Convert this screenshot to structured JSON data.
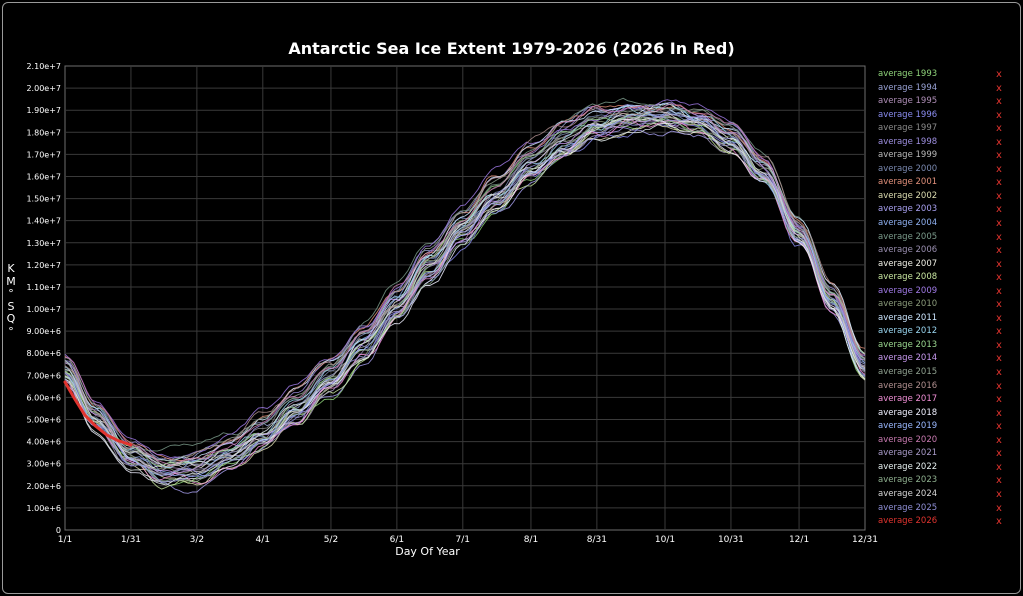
{
  "chart_data": {
    "type": "line",
    "title": "Antarctic Sea Ice Extent 1979-2026  (2026 In Red)",
    "xlabel": "Day Of Year",
    "ylabel_chars": [
      "K",
      "M",
      "°",
      "S",
      "Q",
      "°"
    ],
    "ylim": [
      0,
      21000000
    ],
    "xlim": [
      1,
      365
    ],
    "grid": true,
    "legend_position": "right",
    "y_ticks": [
      {
        "value": 0,
        "label": "0"
      },
      {
        "value": 1000000,
        "label": "1.00e+6"
      },
      {
        "value": 2000000,
        "label": "2.00e+6"
      },
      {
        "value": 3000000,
        "label": "3.00e+6"
      },
      {
        "value": 4000000,
        "label": "4.00e+6"
      },
      {
        "value": 5000000,
        "label": "5.00e+6"
      },
      {
        "value": 6000000,
        "label": "6.00e+6"
      },
      {
        "value": 7000000,
        "label": "7.00e+6"
      },
      {
        "value": 8000000,
        "label": "8.00e+6"
      },
      {
        "value": 9000000,
        "label": "9.00e+6"
      },
      {
        "value": 10000000,
        "label": "1.00e+7"
      },
      {
        "value": 11000000,
        "label": "1.10e+7"
      },
      {
        "value": 12000000,
        "label": "1.20e+7"
      },
      {
        "value": 13000000,
        "label": "1.30e+7"
      },
      {
        "value": 14000000,
        "label": "1.40e+7"
      },
      {
        "value": 15000000,
        "label": "1.50e+7"
      },
      {
        "value": 16000000,
        "label": "1.60e+7"
      },
      {
        "value": 17000000,
        "label": "1.70e+7"
      },
      {
        "value": 18000000,
        "label": "1.80e+7"
      },
      {
        "value": 19000000,
        "label": "1.90e+7"
      },
      {
        "value": 20000000,
        "label": "2.00e+7"
      },
      {
        "value": 21000000,
        "label": "2.10e+7"
      }
    ],
    "x_ticks": [
      {
        "day": 1,
        "label": "1/1"
      },
      {
        "day": 31,
        "label": "1/31"
      },
      {
        "day": 61,
        "label": "3/2"
      },
      {
        "day": 91,
        "label": "4/1"
      },
      {
        "day": 122,
        "label": "5/2"
      },
      {
        "day": 152,
        "label": "6/1"
      },
      {
        "day": 182,
        "label": "7/1"
      },
      {
        "day": 213,
        "label": "8/1"
      },
      {
        "day": 243,
        "label": "8/31"
      },
      {
        "day": 274,
        "label": "10/1"
      },
      {
        "day": 304,
        "label": "10/31"
      },
      {
        "day": 335,
        "label": "12/1"
      },
      {
        "day": 365,
        "label": "12/31"
      }
    ],
    "average_climatology": {
      "x": [
        1,
        15,
        31,
        46,
        61,
        76,
        91,
        106,
        122,
        137,
        152,
        167,
        182,
        197,
        213,
        228,
        243,
        258,
        274,
        289,
        304,
        319,
        335,
        350,
        365
      ],
      "y": [
        7300000,
        5200000,
        3600000,
        2900000,
        2850000,
        3400000,
        4300000,
        5600000,
        7100000,
        8600000,
        10300000,
        12100000,
        13800000,
        15300000,
        16600000,
        17600000,
        18400000,
        18800000,
        18900000,
        18600000,
        17800000,
        16300000,
        13500000,
        10500000,
        7500000
      ]
    },
    "series": [
      {
        "name": "average 1993",
        "color": "#8fd37a"
      },
      {
        "name": "average 1994",
        "color": "#9aa3d6"
      },
      {
        "name": "average 1995",
        "color": "#b08fb8"
      },
      {
        "name": "average 1996",
        "color": "#8a8cf0"
      },
      {
        "name": "average 1997",
        "color": "#8a8a8a"
      },
      {
        "name": "average 1998",
        "color": "#9e8fe0"
      },
      {
        "name": "average 1999",
        "color": "#b9b9b9"
      },
      {
        "name": "average 2000",
        "color": "#7a89b0"
      },
      {
        "name": "average 2001",
        "color": "#e08f7a"
      },
      {
        "name": "average 2002",
        "color": "#dcdcb0"
      },
      {
        "name": "average 2003",
        "color": "#a8a0f0"
      },
      {
        "name": "average 2004",
        "color": "#8fb0f0"
      },
      {
        "name": "average 2005",
        "color": "#7a9a8a"
      },
      {
        "name": "average 2006",
        "color": "#9a8fb0"
      },
      {
        "name": "average 2007",
        "color": "#f0f0e6"
      },
      {
        "name": "average 2008",
        "color": "#c8e6a0"
      },
      {
        "name": "average 2009",
        "color": "#a07ae6"
      },
      {
        "name": "average 2010",
        "color": "#8a9a7a"
      },
      {
        "name": "average 2011",
        "color": "#cce6ff"
      },
      {
        "name": "average 2012",
        "color": "#9ad6f0"
      },
      {
        "name": "average 2013",
        "color": "#9ad68f"
      },
      {
        "name": "average 2014",
        "color": "#c89af0"
      },
      {
        "name": "average 2015",
        "color": "#8fa08f"
      },
      {
        "name": "average 2016",
        "color": "#b08f8f"
      },
      {
        "name": "average 2017",
        "color": "#f08fd6"
      },
      {
        "name": "average 2018",
        "color": "#f0f0ff"
      },
      {
        "name": "average 2019",
        "color": "#9ab8ff"
      },
      {
        "name": "average 2020",
        "color": "#c87ab0"
      },
      {
        "name": "average 2021",
        "color": "#a89ac8"
      },
      {
        "name": "average 2022",
        "color": "#e6f0f0"
      },
      {
        "name": "average 2023",
        "color": "#8fb08f"
      },
      {
        "name": "average 2024",
        "color": "#d6d6d6"
      },
      {
        "name": "average 2025",
        "color": "#8f8fd6"
      },
      {
        "name": "average 2026",
        "color": "#e0342f",
        "x": [
          1,
          5,
          10,
          15,
          20,
          25,
          31
        ],
        "y": [
          6700000,
          6000000,
          5200000,
          4700000,
          4300000,
          4050000,
          3850000
        ]
      }
    ],
    "remove_label": "x"
  }
}
